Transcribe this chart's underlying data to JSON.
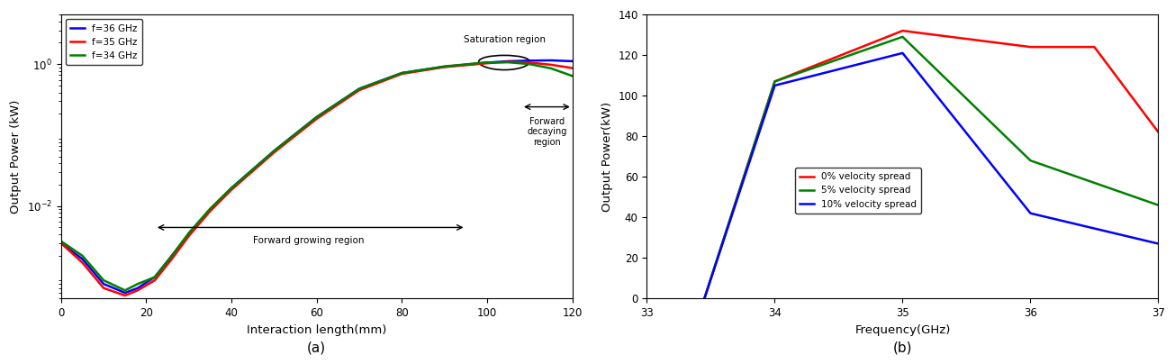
{
  "panel_a": {
    "xlabel": "Interaction length(mm)",
    "ylabel": "Output Power (kW)",
    "xlim": [
      0,
      120
    ],
    "title": "(a)",
    "legend": [
      "f=36 GHz",
      "f=35 GHz",
      "f=34 GHz"
    ],
    "colors": [
      "blue",
      "red",
      "green"
    ],
    "annotation_growing": "Forward growing region",
    "annotation_decaying": "Forward\ndecaying\nregion",
    "annotation_saturation": "Saturation region",
    "f36_x": [
      0,
      5,
      10,
      15,
      18,
      22,
      26,
      30,
      35,
      40,
      50,
      60,
      70,
      80,
      90,
      100,
      105,
      110,
      115,
      120
    ],
    "f36_y": [
      0.003,
      0.0018,
      0.0008,
      0.0006,
      0.0007,
      0.001,
      0.002,
      0.004,
      0.009,
      0.018,
      0.06,
      0.18,
      0.45,
      0.75,
      0.92,
      1.05,
      1.1,
      1.12,
      1.13,
      1.1
    ],
    "f35_x": [
      0,
      5,
      10,
      15,
      18,
      22,
      26,
      30,
      35,
      40,
      50,
      60,
      70,
      80,
      90,
      100,
      105,
      110,
      115,
      120
    ],
    "f35_y": [
      0.003,
      0.0016,
      0.0007,
      0.00055,
      0.00065,
      0.0009,
      0.0018,
      0.0038,
      0.0085,
      0.017,
      0.057,
      0.17,
      0.43,
      0.73,
      0.91,
      1.03,
      1.08,
      1.05,
      0.98,
      0.88
    ],
    "f34_x": [
      0,
      5,
      10,
      15,
      18,
      22,
      26,
      30,
      35,
      40,
      50,
      60,
      70,
      80,
      90,
      100,
      105,
      110,
      115,
      120
    ],
    "f34_y": [
      0.0032,
      0.002,
      0.0009,
      0.00065,
      0.0008,
      0.001,
      0.002,
      0.0042,
      0.0092,
      0.018,
      0.06,
      0.18,
      0.45,
      0.75,
      0.93,
      1.06,
      1.06,
      1.0,
      0.87,
      0.68
    ]
  },
  "panel_b": {
    "xlabel": "Frequency(GHz)",
    "ylabel": "Output Power(kW)",
    "xlim": [
      33,
      37
    ],
    "ylim": [
      0,
      140
    ],
    "yticks": [
      0,
      20,
      40,
      60,
      80,
      100,
      120,
      140
    ],
    "xticks": [
      33,
      34,
      35,
      36,
      37
    ],
    "title": "(b)",
    "legend": [
      "0% velocity spread",
      "5% velocity spread",
      "10% velocity spread"
    ],
    "colors": [
      "red",
      "green",
      "blue"
    ],
    "spread0_x": [
      33.45,
      34.0,
      35.0,
      36.0,
      36.5,
      37.0
    ],
    "spread0_y": [
      0,
      107,
      132,
      124,
      124,
      82
    ],
    "spread5_x": [
      33.45,
      34.0,
      35.0,
      36.0,
      37.0
    ],
    "spread5_y": [
      0,
      107,
      129,
      68,
      46
    ],
    "spread10_x": [
      33.45,
      34.0,
      35.0,
      36.0,
      37.0
    ],
    "spread10_y": [
      0,
      105,
      121,
      42,
      27
    ]
  }
}
